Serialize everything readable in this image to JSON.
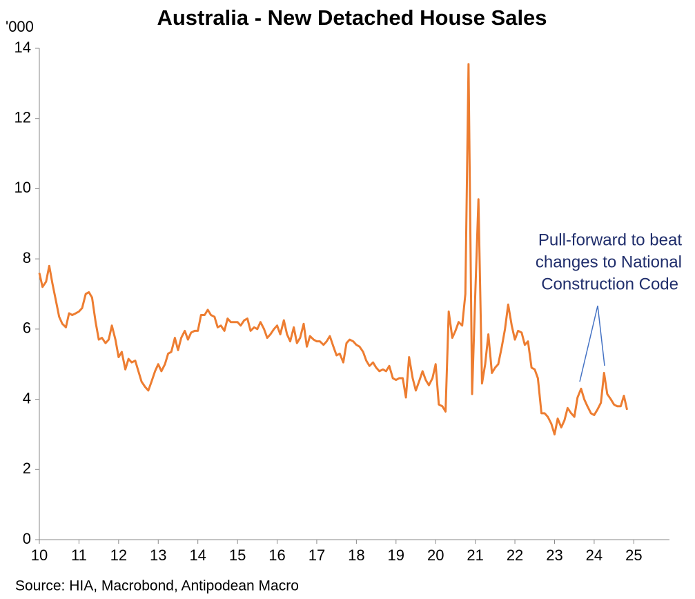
{
  "chart_data": {
    "type": "line",
    "title": "Australia - New Detached House Sales",
    "y_unit_label": "'000",
    "source": "Source: HIA, Macrobond, Antipodean Macro",
    "annotation": [
      "Pull-forward to beat",
      "changes to National",
      "Construction Code"
    ],
    "xlim": [
      10,
      25.9
    ],
    "xticks": [
      10,
      11,
      12,
      13,
      14,
      15,
      16,
      17,
      18,
      19,
      20,
      21,
      22,
      23,
      24,
      25
    ],
    "ylim": [
      0,
      14
    ],
    "yticks": [
      0,
      2,
      4,
      6,
      8,
      10,
      12,
      14
    ],
    "grid": false,
    "x": [
      10,
      10.08,
      10.17,
      10.25,
      10.33,
      10.42,
      10.5,
      10.58,
      10.67,
      10.75,
      10.83,
      10.92,
      11,
      11.08,
      11.17,
      11.25,
      11.33,
      11.42,
      11.5,
      11.58,
      11.67,
      11.75,
      11.83,
      11.92,
      12,
      12.08,
      12.17,
      12.25,
      12.33,
      12.42,
      12.5,
      12.58,
      12.67,
      12.75,
      12.83,
      12.92,
      13,
      13.08,
      13.17,
      13.25,
      13.33,
      13.42,
      13.5,
      13.58,
      13.67,
      13.75,
      13.83,
      13.92,
      14,
      14.08,
      14.17,
      14.25,
      14.33,
      14.42,
      14.5,
      14.58,
      14.67,
      14.75,
      14.83,
      14.92,
      15,
      15.08,
      15.17,
      15.25,
      15.33,
      15.42,
      15.5,
      15.58,
      15.67,
      15.75,
      15.83,
      15.92,
      16,
      16.08,
      16.17,
      16.25,
      16.33,
      16.42,
      16.5,
      16.58,
      16.67,
      16.75,
      16.83,
      16.92,
      17,
      17.08,
      17.17,
      17.25,
      17.33,
      17.42,
      17.5,
      17.58,
      17.67,
      17.75,
      17.83,
      17.92,
      18,
      18.08,
      18.17,
      18.25,
      18.33,
      18.42,
      18.5,
      18.58,
      18.67,
      18.75,
      18.83,
      18.92,
      19,
      19.08,
      19.17,
      19.25,
      19.33,
      19.42,
      19.5,
      19.58,
      19.67,
      19.75,
      19.83,
      19.92,
      20,
      20.08,
      20.17,
      20.25,
      20.33,
      20.42,
      20.5,
      20.58,
      20.67,
      20.75,
      20.83,
      20.92,
      21,
      21.08,
      21.17,
      21.25,
      21.33,
      21.42,
      21.5,
      21.58,
      21.67,
      21.75,
      21.83,
      21.92,
      22,
      22.08,
      22.17,
      22.25,
      22.33,
      22.42,
      22.5,
      22.58,
      22.67,
      22.75,
      22.83,
      22.92,
      23,
      23.08,
      23.17,
      23.25,
      23.33,
      23.42,
      23.5,
      23.58,
      23.67,
      23.75,
      23.83,
      23.92,
      24,
      24.08,
      24.17,
      24.25,
      24.33,
      24.42,
      24.5,
      24.58,
      24.67,
      24.75,
      24.83
    ],
    "series": [
      {
        "color": "#ED7D31",
        "values": [
          7.6,
          7.2,
          7.35,
          7.8,
          7.3,
          6.8,
          6.35,
          6.15,
          6.05,
          6.45,
          6.4,
          6.45,
          6.5,
          6.6,
          7.0,
          7.05,
          6.9,
          6.2,
          5.7,
          5.75,
          5.6,
          5.7,
          6.1,
          5.7,
          5.2,
          5.35,
          4.85,
          5.15,
          5.05,
          5.1,
          4.8,
          4.5,
          4.35,
          4.25,
          4.5,
          4.8,
          5.0,
          4.8,
          5.0,
          5.3,
          5.35,
          5.75,
          5.4,
          5.75,
          5.95,
          5.7,
          5.9,
          5.95,
          5.95,
          6.4,
          6.4,
          6.55,
          6.4,
          6.35,
          6.05,
          6.1,
          5.95,
          6.3,
          6.2,
          6.2,
          6.2,
          6.1,
          6.25,
          6.3,
          5.95,
          6.05,
          6.0,
          6.2,
          6.0,
          5.75,
          5.85,
          6.0,
          6.1,
          5.85,
          6.25,
          5.85,
          5.65,
          6.05,
          5.6,
          5.75,
          6.15,
          5.5,
          5.8,
          5.7,
          5.65,
          5.65,
          5.55,
          5.65,
          5.8,
          5.5,
          5.25,
          5.3,
          5.05,
          5.6,
          5.7,
          5.65,
          5.55,
          5.5,
          5.35,
          5.1,
          4.95,
          5.05,
          4.9,
          4.8,
          4.85,
          4.8,
          4.95,
          4.6,
          4.55,
          4.6,
          4.6,
          4.05,
          5.2,
          4.6,
          4.25,
          4.5,
          4.8,
          4.55,
          4.4,
          4.6,
          5.0,
          3.85,
          3.8,
          3.65,
          6.5,
          5.75,
          5.95,
          6.2,
          6.1,
          7.0,
          13.55,
          4.15,
          7.0,
          9.7,
          4.45,
          5.0,
          5.85,
          4.75,
          4.9,
          5.0,
          5.5,
          6.0,
          6.7,
          6.1,
          5.7,
          5.95,
          5.9,
          5.55,
          5.65,
          4.9,
          4.85,
          4.6,
          3.6,
          3.6,
          3.5,
          3.3,
          3.0,
          3.45,
          3.2,
          3.4,
          3.75,
          3.6,
          3.5,
          4.05,
          4.3,
          4.0,
          3.8,
          3.6,
          3.55,
          3.7,
          3.9,
          4.75,
          4.15,
          4.0,
          3.85,
          3.8,
          3.8,
          4.1,
          3.7
        ]
      }
    ]
  }
}
